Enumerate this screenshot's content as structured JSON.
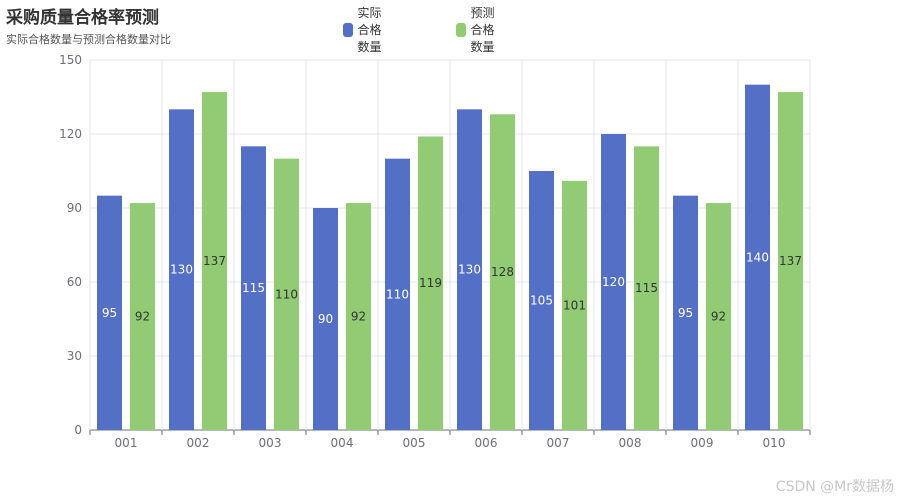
{
  "chart_data": {
    "type": "bar",
    "title": "采购质量合格率预测",
    "subtitle": "实际合格数量与预测合格数量对比",
    "categories": [
      "001",
      "002",
      "003",
      "004",
      "005",
      "006",
      "007",
      "008",
      "009",
      "010"
    ],
    "series": [
      {
        "name": "实际合格数量",
        "color": "#5470c6",
        "label_color": "#ffffff",
        "values": [
          95,
          130,
          115,
          90,
          110,
          130,
          105,
          120,
          95,
          140
        ]
      },
      {
        "name": "预测合格数量",
        "color": "#91cc75",
        "label_color": "#333333",
        "values": [
          92,
          137,
          110,
          92,
          119,
          128,
          101,
          115,
          92,
          137
        ]
      }
    ],
    "ylim": [
      0,
      150
    ],
    "yticks": [
      0,
      30,
      60,
      90,
      120,
      150
    ],
    "xlabel": "",
    "ylabel": "",
    "legend_position": "top-center",
    "grid": true
  },
  "watermark": "CSDN @Mr数据杨"
}
